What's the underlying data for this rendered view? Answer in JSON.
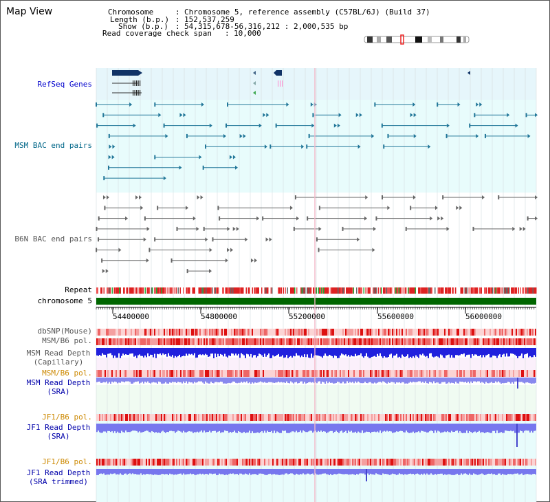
{
  "window": {
    "title": "Map View"
  },
  "info": {
    "chromosome_label": "Chromosome",
    "chromosome_value": "Chromosome 5, reference assembly (C57BL/6J) (Build 37)",
    "length_label": "Length (b.p.)",
    "length_value": "152,537,259",
    "show_label": "Show (b.p.)",
    "show_value": "54,315,678-56,316,212 : 2,000,535 bp",
    "span_label": "Read coverage check span",
    "span_value": "10,000"
  },
  "tracks": {
    "refseq": {
      "label": "RefSeq Genes",
      "color": "#0000cc"
    },
    "msm_bac": {
      "label": "MSM BAC end pairs",
      "color": "#006688"
    },
    "b6n_bac": {
      "label": "B6N BAC end pairs",
      "color": "#555555"
    },
    "repeat": {
      "label": "Repeat"
    },
    "chromosome": {
      "label": "chromosome 5",
      "color": "#006600"
    },
    "dbsnp": {
      "label": "dbSNP(Mouse)",
      "color": "#555555"
    },
    "msm_b6_pol_1": {
      "label": "MSM/B6 pol.",
      "color": "#555555"
    },
    "msm_depth_cap": {
      "label_1": "MSM Read Depth",
      "label_2": "(Capillary)",
      "color": "#555555"
    },
    "msm_b6_pol_2": {
      "label": "MSM/B6 pol.",
      "color": "#cc8800"
    },
    "msm_depth_sra": {
      "label_1": "MSM Read Depth",
      "label_2": "(SRA)",
      "color": "#0000aa"
    },
    "jf1_b6_pol_1": {
      "label": "JF1/B6 pol.",
      "color": "#cc8800"
    },
    "jf1_depth_sra": {
      "label_1": "JF1 Read Depth",
      "label_2": "(SRA)",
      "color": "#0000aa"
    },
    "jf1_b6_pol_2": {
      "label": "JF1/B6 pol.",
      "color": "#cc8800"
    },
    "jf1_depth_trim": {
      "label_1": "JF1 Read Depth",
      "label_2": "(SRA trimmed)",
      "color": "#0000aa"
    }
  },
  "axis": {
    "ticks": [
      "54400000",
      "54800000",
      "55200000",
      "55600000",
      "56000000"
    ]
  }
}
